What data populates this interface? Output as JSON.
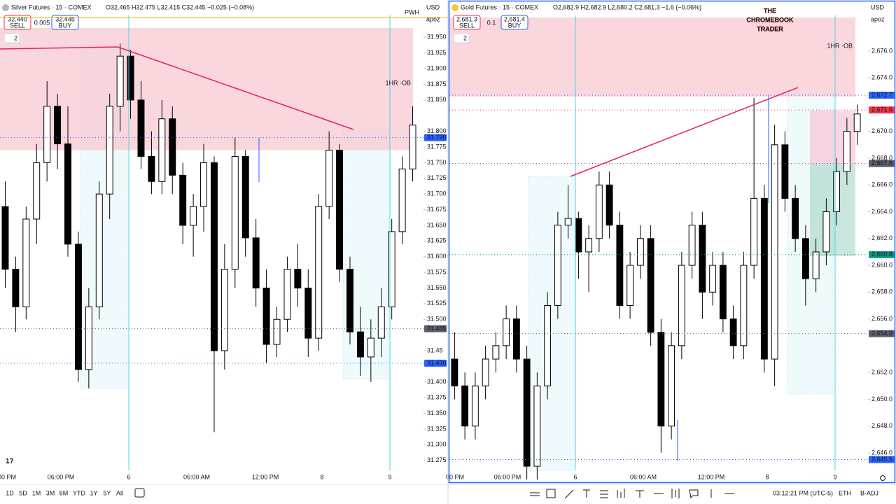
{
  "panels": [
    {
      "symbol": "Silver Futures · 15 · COMEX",
      "ohlc": "O32.465 H32.475 L32.415 C32.445 −0.025 (−0.08%)",
      "sell_price": "32.440",
      "sell": "SELL",
      "spread": "0.005",
      "buy_price": "32.445",
      "buy": "BUY",
      "indicator_count": "2",
      "currency": "USD",
      "account": "apoz",
      "level_note": "PWH",
      "zone_label": "1HR -OB",
      "zone": [
        31.77,
        31.965
      ],
      "ylim": [
        31.259,
        31.985
      ],
      "yticks": [
        31.275,
        {
          "value": 31.3,
          "label": "31.300"
        },
        31.325,
        {
          "value": 31.35,
          "label": "31.350"
        },
        31.375,
        {
          "value": 31.4,
          "label": "31.400"
        },
        31.45,
        {
          "value": 31.5,
          "label": "31.500"
        },
        31.525,
        {
          "value": 31.55,
          "label": "31.550"
        },
        31.575,
        {
          "value": 31.6,
          "label": "31.600"
        },
        31.625,
        {
          "value": 31.65,
          "label": "31.650"
        },
        31.675,
        {
          "value": 31.7,
          "label": "31.700"
        },
        31.725,
        {
          "value": 31.75,
          "label": "31.750"
        },
        31.775,
        {
          "value": 31.8,
          "label": "31.800"
        },
        {
          "value": 31.85,
          "label": "31.850"
        },
        31.875,
        {
          "value": 31.9,
          "label": "31.900"
        },
        31.925,
        {
          "value": 31.95,
          "label": "31.950"
        }
      ],
      "price_tags": [
        {
          "value": 31.79,
          "label": "31.790",
          "color": "#2962ff"
        },
        {
          "value": 31.485,
          "label": "31.485",
          "color": "#5d606b"
        },
        {
          "value": 31.43,
          "label": "31.430",
          "color": "#2962ff"
        }
      ],
      "time_labels": [
        "00 PM",
        "06:00 PM",
        "6",
        "06:00 AM",
        "12:00 PM",
        "8",
        "9"
      ],
      "candles": [
        [
          31.68,
          31.72,
          31.55,
          31.58
        ],
        [
          31.58,
          31.6,
          31.48,
          31.52
        ],
        [
          31.52,
          31.68,
          31.5,
          31.66
        ],
        [
          31.66,
          31.78,
          31.62,
          31.75
        ],
        [
          31.75,
          31.88,
          31.72,
          31.84
        ],
        [
          31.84,
          31.86,
          31.74,
          31.78
        ],
        [
          31.78,
          31.84,
          31.6,
          31.62
        ],
        [
          31.62,
          31.64,
          31.4,
          31.42
        ],
        [
          31.42,
          31.55,
          31.39,
          31.52
        ],
        [
          31.52,
          31.72,
          31.5,
          31.7
        ],
        [
          31.7,
          31.86,
          31.66,
          31.84
        ],
        [
          31.84,
          31.94,
          31.8,
          31.92
        ],
        [
          31.92,
          31.93,
          31.82,
          31.85
        ],
        [
          31.85,
          31.88,
          31.74,
          31.76
        ],
        [
          31.76,
          31.8,
          31.7,
          31.72
        ],
        [
          31.72,
          31.85,
          31.7,
          31.82
        ],
        [
          31.82,
          31.84,
          31.7,
          31.73
        ],
        [
          31.73,
          31.75,
          31.62,
          31.65
        ],
        [
          31.65,
          31.7,
          31.6,
          31.68
        ],
        [
          31.68,
          31.78,
          31.64,
          31.75
        ],
        [
          31.75,
          31.76,
          31.32,
          31.45
        ],
        [
          31.45,
          31.62,
          31.42,
          31.58
        ],
        [
          31.58,
          31.79,
          31.55,
          31.76
        ],
        [
          31.76,
          31.77,
          31.6,
          31.63
        ],
        [
          31.63,
          31.66,
          31.52,
          31.55
        ],
        [
          31.55,
          31.58,
          31.43,
          31.46
        ],
        [
          31.46,
          31.52,
          31.44,
          31.5
        ],
        [
          31.5,
          31.6,
          31.48,
          31.58
        ],
        [
          31.58,
          31.62,
          31.52,
          31.55
        ],
        [
          31.55,
          31.58,
          31.44,
          31.47
        ],
        [
          31.47,
          31.7,
          31.45,
          31.68
        ],
        [
          31.68,
          31.8,
          31.66,
          31.77
        ],
        [
          31.77,
          31.78,
          31.56,
          31.58
        ],
        [
          31.58,
          31.6,
          31.46,
          31.48
        ],
        [
          31.48,
          31.52,
          31.41,
          31.44
        ],
        [
          31.44,
          31.5,
          31.4,
          31.47
        ],
        [
          31.47,
          31.55,
          31.44,
          31.52
        ],
        [
          31.52,
          31.66,
          31.5,
          31.64
        ],
        [
          31.64,
          31.76,
          31.62,
          31.74
        ],
        [
          31.74,
          31.84,
          31.72,
          31.81
        ]
      ]
    },
    {
      "symbol": "Gold Futures · 15 · COMEX",
      "ohlc": "O2,682.9 H2,682.9 L2,680.2 C2,681.3 −1.6 (−0.06%)",
      "sell_price": "2,681.3",
      "sell": "SELL",
      "spread": "0.1",
      "buy_price": "2,681.4",
      "buy": "BUY",
      "indicator_count": "2",
      "currency": "USD",
      "account": "apoz",
      "zone_label": "1HR -OB",
      "zone": [
        2672.6,
        2678.5
      ],
      "ylim": [
        2644.69,
        2678.66
      ],
      "yticks": [
        {
          "value": 2646,
          "label": "2,646.0"
        },
        {
          "value": 2648,
          "label": "2,648.0"
        },
        {
          "value": 2650,
          "label": "2,650.0"
        },
        {
          "value": 2652,
          "label": "2,652.0"
        },
        {
          "value": 2656,
          "label": "2,656.0"
        },
        {
          "value": 2658,
          "label": "2,658.0"
        },
        {
          "value": 2660,
          "label": "2,660.0"
        },
        {
          "value": 2662,
          "label": "2,662.0"
        },
        {
          "value": 2664,
          "label": "2,664.0"
        },
        {
          "value": 2666,
          "label": "2,666.0"
        },
        {
          "value": 2668,
          "label": "2,668.0"
        },
        {
          "value": 2670,
          "label": "2,670.0"
        },
        {
          "value": 2674,
          "label": "2,674.0"
        },
        {
          "value": 2676,
          "label": "2,676.0"
        }
      ],
      "price_tags": [
        {
          "value": 2672.7,
          "label": "2,672.7",
          "color": "#2962ff"
        },
        {
          "value": 2671.6,
          "label": "2,671.6",
          "color": "#f23645"
        },
        {
          "value": 2667.6,
          "label": "2,667.6",
          "color": "#5d606b"
        },
        {
          "value": 2660.8,
          "label": "2,660.8",
          "color": "#089981"
        },
        {
          "value": 2654.9,
          "label": "2,654.9",
          "color": "#5d606b"
        },
        {
          "value": 2645.5,
          "label": "2,645.5",
          "color": "#2962ff"
        }
      ],
      "time_labels": [
        "00 PM",
        "06:00 PM",
        "6",
        "06:00 AM",
        "12:00 PM",
        "8",
        "9"
      ],
      "candles": [
        [
          2653,
          2655,
          2650,
          2651
        ],
        [
          2651,
          2652,
          2647,
          2648
        ],
        [
          2648,
          2652,
          2647,
          2651
        ],
        [
          2651,
          2654,
          2650,
          2653
        ],
        [
          2653,
          2655,
          2652,
          2654
        ],
        [
          2654,
          2657,
          2653,
          2656
        ],
        [
          2656,
          2657,
          2652,
          2653
        ],
        [
          2653,
          2654,
          2644,
          2645
        ],
        [
          2645,
          2652,
          2644,
          2651
        ],
        [
          2651,
          2658,
          2650,
          2657
        ],
        [
          2657,
          2664,
          2656,
          2663
        ],
        [
          2663,
          2666,
          2662,
          2663.5
        ],
        [
          2663.5,
          2664,
          2659,
          2661
        ],
        [
          2661,
          2663,
          2658,
          2662
        ],
        [
          2662,
          2667,
          2661,
          2666
        ],
        [
          2666,
          2667,
          2662,
          2663
        ],
        [
          2663,
          2664,
          2656,
          2657
        ],
        [
          2657,
          2661,
          2656,
          2660
        ],
        [
          2660,
          2663,
          2659,
          2662
        ],
        [
          2662,
          2663,
          2654,
          2655
        ],
        [
          2655,
          2656,
          2646,
          2648
        ],
        [
          2648,
          2655,
          2647,
          2654
        ],
        [
          2654,
          2661,
          2653,
          2660
        ],
        [
          2660,
          2664,
          2659,
          2663
        ],
        [
          2663,
          2664,
          2656,
          2658
        ],
        [
          2658,
          2661,
          2657,
          2660
        ],
        [
          2660,
          2661,
          2655,
          2656
        ],
        [
          2656,
          2657,
          2653,
          2654
        ],
        [
          2654,
          2661,
          2653,
          2660
        ],
        [
          2660,
          2672.5,
          2659,
          2665
        ],
        [
          2665,
          2666,
          2652,
          2653
        ],
        [
          2653,
          2670.5,
          2651,
          2669
        ],
        [
          2669,
          2670,
          2664,
          2665
        ],
        [
          2665,
          2666,
          2661,
          2662
        ],
        [
          2662,
          2663,
          2657,
          2659
        ],
        [
          2659,
          2662,
          2658,
          2661
        ],
        [
          2661,
          2665,
          2660,
          2664
        ],
        [
          2664,
          2668,
          2663,
          2667
        ],
        [
          2667,
          2671,
          2666,
          2670
        ],
        [
          2670,
          2672,
          2669,
          2671.3
        ]
      ]
    }
  ],
  "watermark": [
    "THE",
    "CHROMEBOOK",
    "TRADER"
  ],
  "toolbar": {
    "ranges": [
      "1D",
      "5D",
      "1M",
      "3M",
      "6M",
      "YTD",
      "1Y",
      "5Y",
      "All"
    ],
    "clock": "03:12:21 PM (UTC-5)",
    "session": "ETH",
    "adjust": "B-ADJ"
  }
}
